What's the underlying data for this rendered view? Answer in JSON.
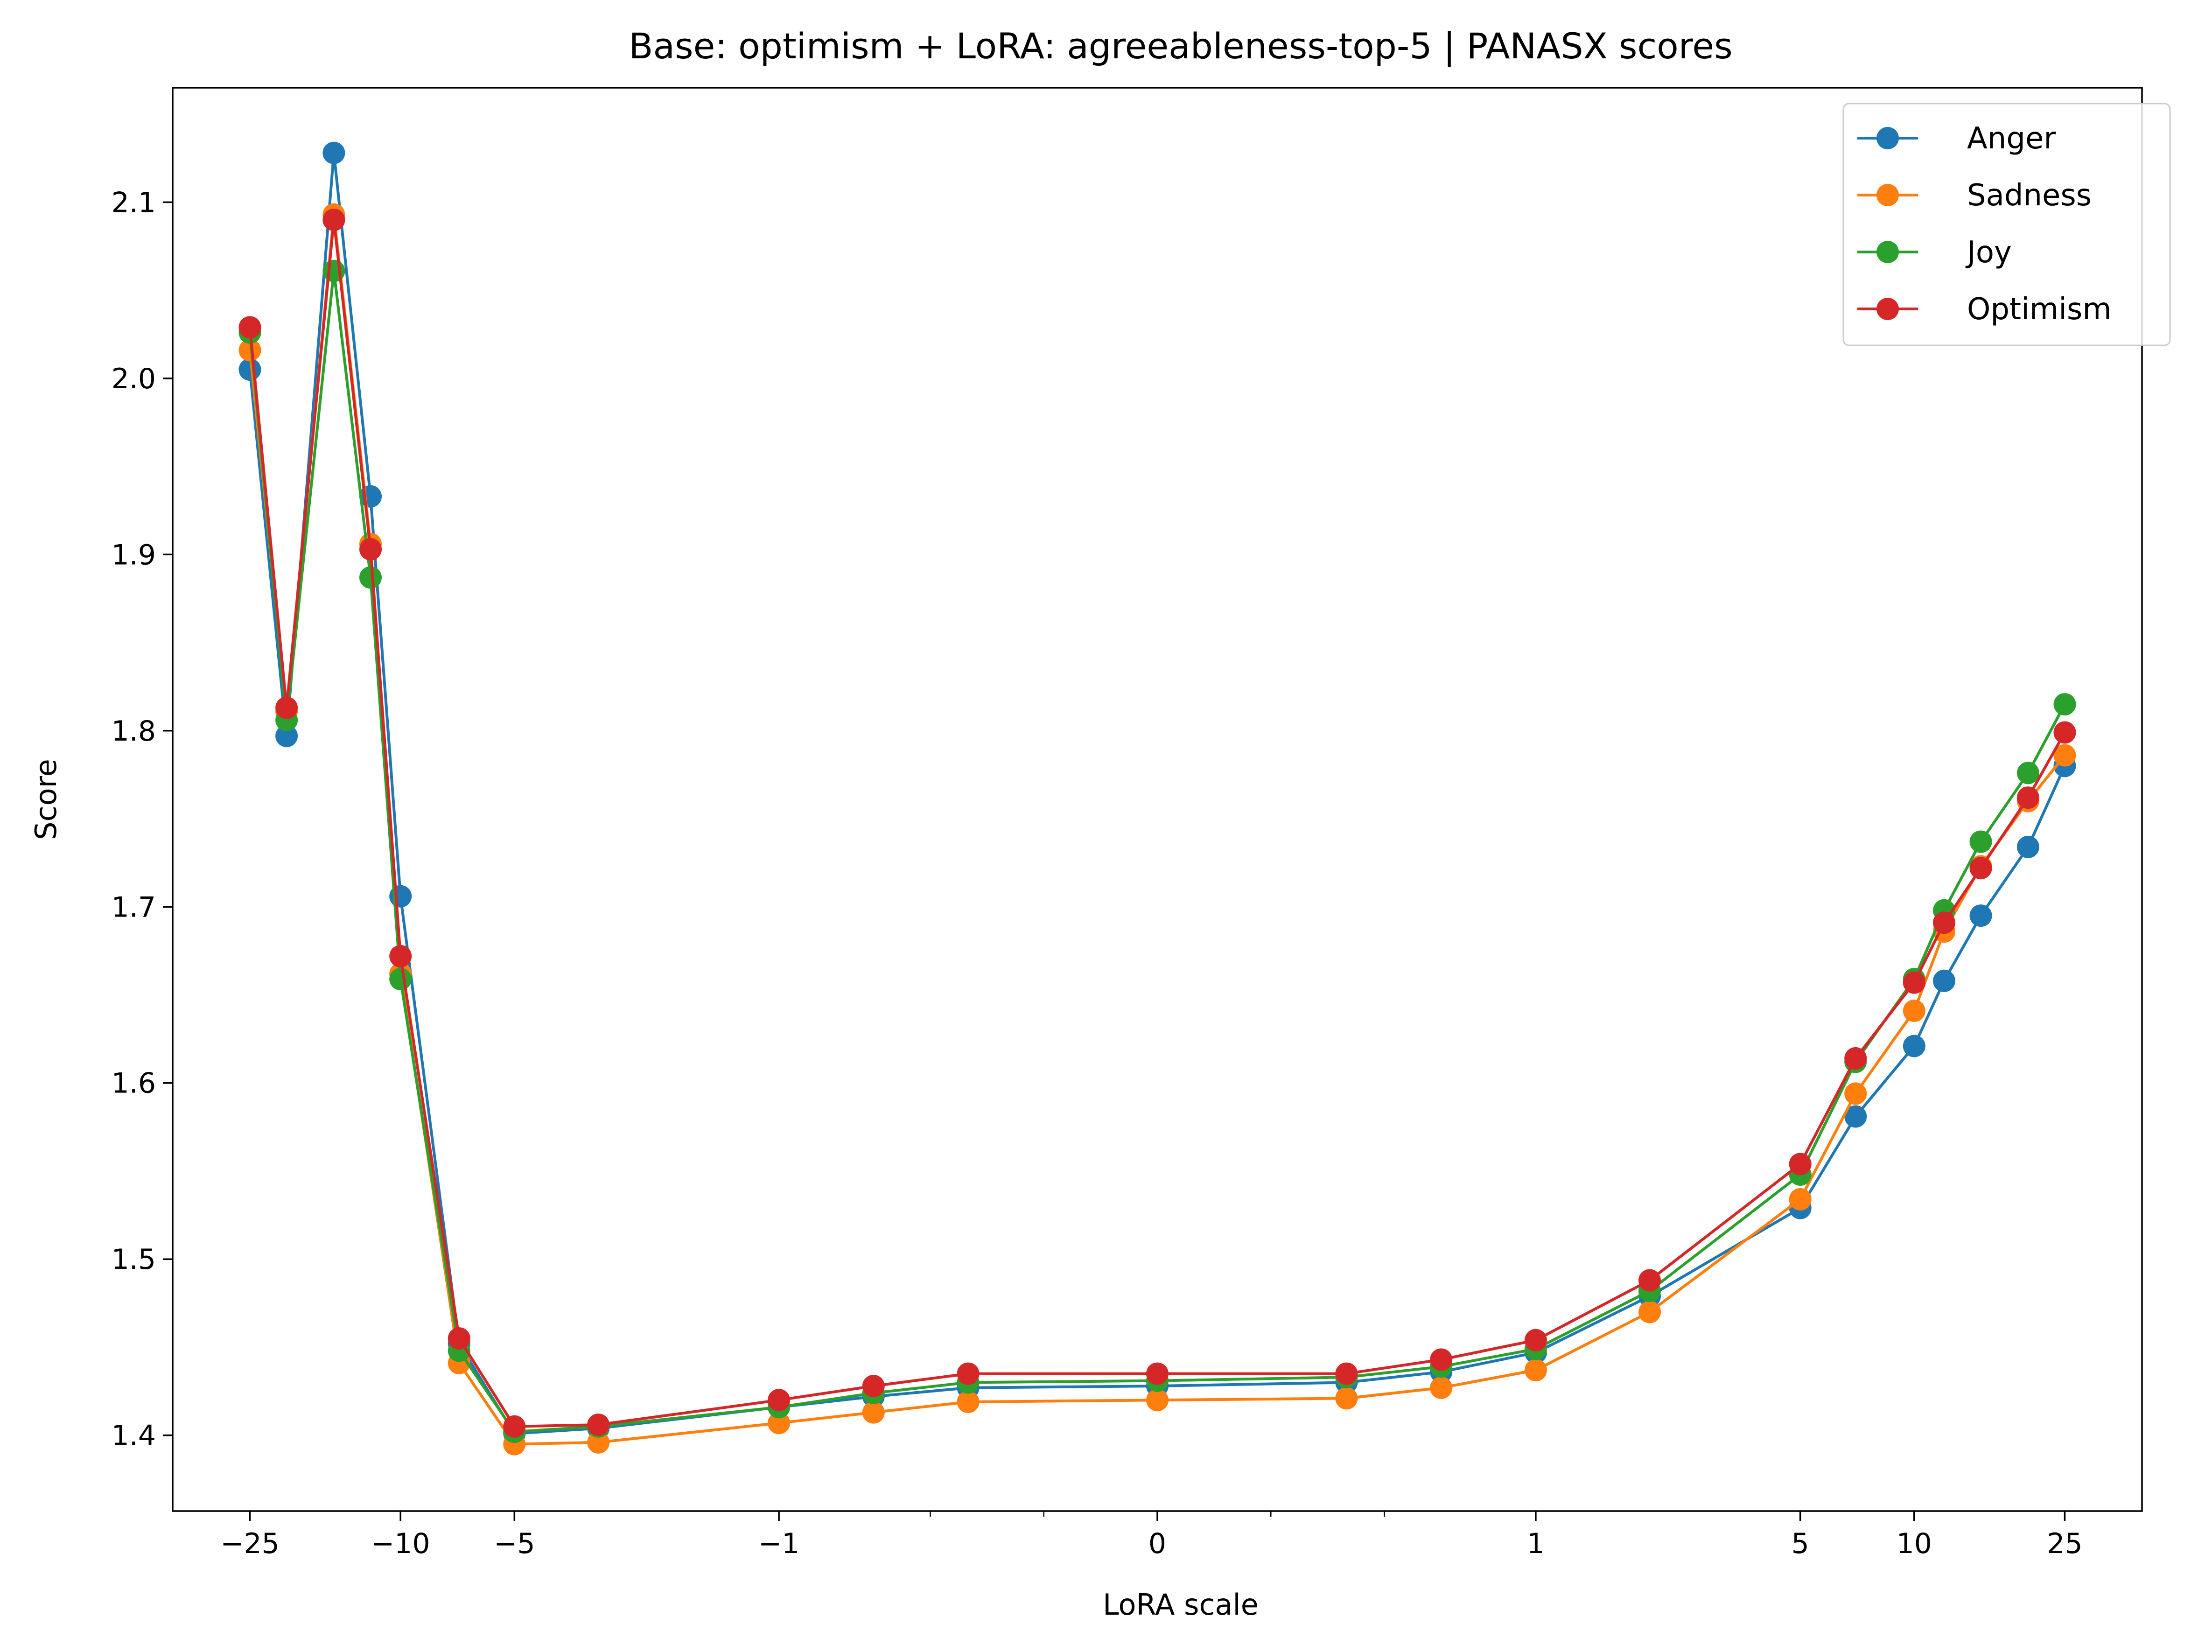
{
  "chart_data": {
    "type": "line",
    "title": "Base: optimism + LoRA: agreeableness-top-5 | PANASX scores",
    "xlabel": "LoRA scale",
    "ylabel": "Score",
    "x_scale": "symlog",
    "x_scale_linthresh": 1,
    "xlim": [
      -40,
      40
    ],
    "ylim": [
      1.357,
      2.165
    ],
    "x_major_ticks": [
      {
        "value": -25,
        "label": "−25"
      },
      {
        "value": -10,
        "label": "−10"
      },
      {
        "value": -5,
        "label": "−5"
      },
      {
        "value": -1,
        "label": "−1"
      },
      {
        "value": 0,
        "label": "0"
      },
      {
        "value": 1,
        "label": "1"
      },
      {
        "value": 5,
        "label": "5"
      },
      {
        "value": 10,
        "label": "10"
      },
      {
        "value": 25,
        "label": "25"
      }
    ],
    "x_minor_ticks": [
      -0.6,
      -0.3,
      0.3,
      0.6
    ],
    "y_ticks": [
      {
        "value": 1.4,
        "label": "1.4"
      },
      {
        "value": 1.5,
        "label": "1.5"
      },
      {
        "value": 1.6,
        "label": "1.6"
      },
      {
        "value": 1.7,
        "label": "1.7"
      },
      {
        "value": 1.8,
        "label": "1.8"
      },
      {
        "value": 1.9,
        "label": "1.9"
      },
      {
        "value": 2.0,
        "label": "2.0"
      },
      {
        "value": 2.1,
        "label": "2.1"
      }
    ],
    "grid": false,
    "legend_position": "top-right",
    "x": [
      -25,
      -20,
      -15,
      -12,
      -10,
      -7,
      -5,
      -3,
      -1,
      -0.75,
      -0.5,
      0,
      0.5,
      0.75,
      1,
      2,
      5,
      7,
      10,
      12,
      15,
      20,
      25
    ],
    "series": [
      {
        "name": "Anger",
        "color": "#1f77b4",
        "values": [
          2.005,
          1.797,
          2.128,
          1.933,
          1.706,
          1.452,
          1.401,
          1.404,
          1.416,
          1.422,
          1.427,
          1.428,
          1.43,
          1.436,
          1.447,
          1.479,
          1.529,
          1.581,
          1.621,
          1.658,
          1.695,
          1.734,
          1.78
        ]
      },
      {
        "name": "Sadness",
        "color": "#ff7f0e",
        "values": [
          2.016,
          1.811,
          2.093,
          1.906,
          1.662,
          1.441,
          1.395,
          1.396,
          1.407,
          1.413,
          1.419,
          1.42,
          1.421,
          1.427,
          1.437,
          1.47,
          1.534,
          1.594,
          1.641,
          1.686,
          1.723,
          1.76,
          1.786
        ]
      },
      {
        "name": "Joy",
        "color": "#2ca02c",
        "values": [
          2.026,
          1.806,
          2.061,
          1.887,
          1.659,
          1.448,
          1.402,
          1.405,
          1.416,
          1.424,
          1.43,
          1.431,
          1.433,
          1.439,
          1.449,
          1.482,
          1.548,
          1.612,
          1.659,
          1.698,
          1.737,
          1.776,
          1.815
        ]
      },
      {
        "name": "Optimism",
        "color": "#d62728",
        "values": [
          2.029,
          1.813,
          2.09,
          1.903,
          1.672,
          1.455,
          1.405,
          1.406,
          1.42,
          1.428,
          1.435,
          1.435,
          1.435,
          1.443,
          1.454,
          1.488,
          1.554,
          1.614,
          1.657,
          1.691,
          1.722,
          1.762,
          1.799
        ]
      }
    ]
  }
}
